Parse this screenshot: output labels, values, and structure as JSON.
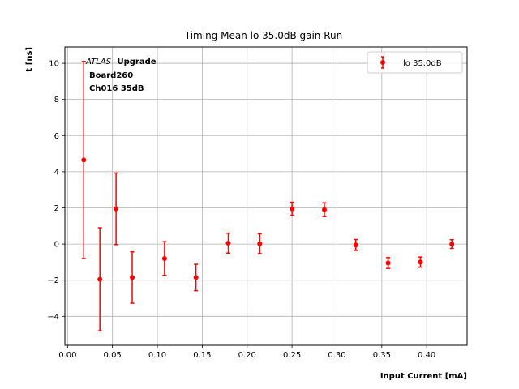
{
  "chart_data": {
    "type": "scatter",
    "title": "Timing Mean lo 35.0dB gain Run",
    "xlabel": "Input Current [mA]",
    "ylabel": "t [ns]",
    "xlim": [
      -0.003,
      0.445
    ],
    "ylim": [
      -5.6,
      10.9
    ],
    "xticks": [
      0.0,
      0.05,
      0.1,
      0.15,
      0.2,
      0.25,
      0.3,
      0.35,
      0.4
    ],
    "xtick_labels": [
      "0.00",
      "0.05",
      "0.10",
      "0.15",
      "0.20",
      "0.25",
      "0.30",
      "0.35",
      "0.40"
    ],
    "yticks": [
      -4,
      -2,
      0,
      2,
      4,
      6,
      8,
      10
    ],
    "ytick_labels": [
      "−4",
      "−2",
      "0",
      "2",
      "4",
      "6",
      "8",
      "10"
    ],
    "grid": true,
    "legend_position": "top-right",
    "series": [
      {
        "name": "lo 35.0dB",
        "color": "#ff0000",
        "marker": "circle",
        "x": [
          0.018,
          0.036,
          0.054,
          0.072,
          0.108,
          0.143,
          0.179,
          0.214,
          0.25,
          0.286,
          0.321,
          0.357,
          0.393,
          0.428
        ],
        "y": [
          4.65,
          -1.95,
          1.95,
          -1.85,
          -0.8,
          -1.85,
          0.05,
          0.02,
          1.95,
          1.9,
          -0.05,
          -1.05,
          -1.0,
          0.0
        ],
        "yerr": [
          5.45,
          2.85,
          1.98,
          1.42,
          0.93,
          0.73,
          0.55,
          0.55,
          0.36,
          0.38,
          0.3,
          0.3,
          0.28,
          0.24
        ]
      }
    ],
    "annotations": {
      "atlas": "ATLAS",
      "upgrade": "Upgrade",
      "line2": "Board260",
      "line3": "Ch016 35dB"
    }
  }
}
